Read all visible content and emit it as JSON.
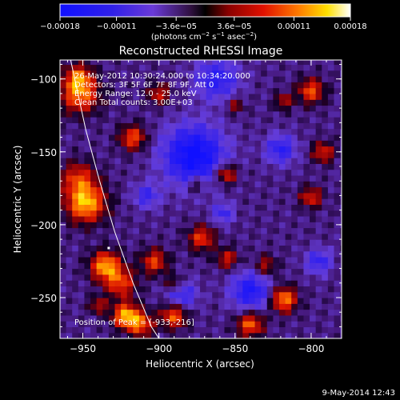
{
  "footer_date": "9-May-2014 12:43",
  "chart_data": {
    "type": "heatmap",
    "title": "Reconstructed RHESSI Image",
    "xlabel": "Heliocentric X (arcsec)",
    "ylabel": "Heliocentric Y (arcsec)",
    "xlim": [
      -965,
      -780
    ],
    "ylim": [
      -278,
      -87
    ],
    "x_ticks": [
      -950,
      -900,
      -850,
      -800
    ],
    "x_tick_labels": [
      "−950",
      "−900",
      "−850",
      "−800"
    ],
    "y_ticks": [
      -100,
      -150,
      -200,
      -250
    ],
    "y_tick_labels": [
      "−100",
      "−150",
      "−200",
      "−250"
    ],
    "colorbar": {
      "range": [
        -0.00018,
        0.00018
      ],
      "ticks": [
        -0.00018,
        -0.00011,
        -3.6e-05,
        3.6e-05,
        0.00011,
        0.00018
      ],
      "tick_labels": [
        "−0.00018",
        "−0.00011",
        "−3.6e−05",
        "3.6e−05",
        "0.00011",
        "0.00018"
      ],
      "units_main": "(photons cm",
      "units_exp1": "−2",
      "units_mid": " s",
      "units_exp2": "−1",
      "units_mid2": " asec",
      "units_exp3": "−2",
      "units_end": ")",
      "colormap": [
        "#1010ff",
        "#6a3af0",
        "#4a1a7a",
        "#000000",
        "#8a0000",
        "#e01000",
        "#ff7a00",
        "#ffe000",
        "#ffffff"
      ]
    },
    "annotations": [
      "26-May-2012 10:30:24.000 to 10:34:20.000",
      "Detectors: 3F 5F 6F 7F 8F 9F, Att 0",
      "Energy Range: 12.0 - 25.0 keV",
      "Clean    Total counts: 3.00E+03"
    ],
    "peak_label": "Position of Peak = [-933,-216]",
    "peak": [
      -933,
      -216
    ],
    "limb_curve": [
      [
        -958,
        -87
      ],
      [
        -948,
        -135
      ],
      [
        -939,
        -170
      ],
      [
        -929,
        -205
      ],
      [
        -917,
        -240
      ],
      [
        -905,
        -270
      ],
      [
        -900,
        -278
      ]
    ],
    "hot_sources": [
      {
        "x": -952,
        "y": -110,
        "r": 9,
        "v": 0.00014
      },
      {
        "x": -953,
        "y": -98,
        "r": 6,
        "v": 0.0001
      },
      {
        "x": -948,
        "y": -185,
        "r": 9,
        "v": 0.00017
      },
      {
        "x": -953,
        "y": -168,
        "r": 8,
        "v": 0.0001
      },
      {
        "x": -935,
        "y": -228,
        "r": 7,
        "v": 0.00016
      },
      {
        "x": -925,
        "y": -240,
        "r": 7,
        "v": 0.00011
      },
      {
        "x": -922,
        "y": -262,
        "r": 6,
        "v": 0.00016
      },
      {
        "x": -912,
        "y": -268,
        "r": 6,
        "v": 0.00012
      },
      {
        "x": -890,
        "y": -262,
        "r": 6,
        "v": 0.00013
      },
      {
        "x": -917,
        "y": -140,
        "r": 6,
        "v": 0.00012
      },
      {
        "x": -903,
        "y": -225,
        "r": 6,
        "v": 0.00011
      },
      {
        "x": -872,
        "y": -209,
        "r": 6,
        "v": 0.00011
      },
      {
        "x": -855,
        "y": -223,
        "r": 5,
        "v": 9e-05
      },
      {
        "x": -840,
        "y": -268,
        "r": 6,
        "v": 0.00013
      },
      {
        "x": -818,
        "y": -251,
        "r": 6,
        "v": 0.00015
      },
      {
        "x": -830,
        "y": -228,
        "r": 5,
        "v": 8e-05
      },
      {
        "x": -856,
        "y": -165,
        "r": 5,
        "v": 0.00012
      },
      {
        "x": -875,
        "y": -172,
        "r": 4,
        "v": 8e-05
      },
      {
        "x": -800,
        "y": -108,
        "r": 6,
        "v": 0.00012
      },
      {
        "x": -792,
        "y": -150,
        "r": 5,
        "v": 0.0001
      },
      {
        "x": -800,
        "y": -181,
        "r": 5,
        "v": 0.0001
      },
      {
        "x": -818,
        "y": -115,
        "r": 4,
        "v": 8e-05
      },
      {
        "x": -850,
        "y": -118,
        "r": 4,
        "v": 7e-05
      },
      {
        "x": -900,
        "y": -110,
        "r": 5,
        "v": 9e-05
      },
      {
        "x": -890,
        "y": -240,
        "r": 4,
        "v": 8e-05
      },
      {
        "x": -940,
        "y": -255,
        "r": 4,
        "v": 8e-05
      }
    ],
    "cold_sources": [
      {
        "x": -877,
        "y": -152,
        "r": 14,
        "v": -0.00016
      },
      {
        "x": -862,
        "y": -100,
        "r": 10,
        "v": -0.0001
      },
      {
        "x": -840,
        "y": -245,
        "r": 9,
        "v": -0.00012
      },
      {
        "x": -820,
        "y": -148,
        "r": 7,
        "v": -0.0001
      },
      {
        "x": -885,
        "y": -248,
        "r": 7,
        "v": -9e-05
      },
      {
        "x": -908,
        "y": -180,
        "r": 6,
        "v": -8e-05
      },
      {
        "x": -795,
        "y": -225,
        "r": 6,
        "v": -9e-05
      },
      {
        "x": -858,
        "y": -192,
        "r": 5,
        "v": -8e-05
      }
    ]
  }
}
